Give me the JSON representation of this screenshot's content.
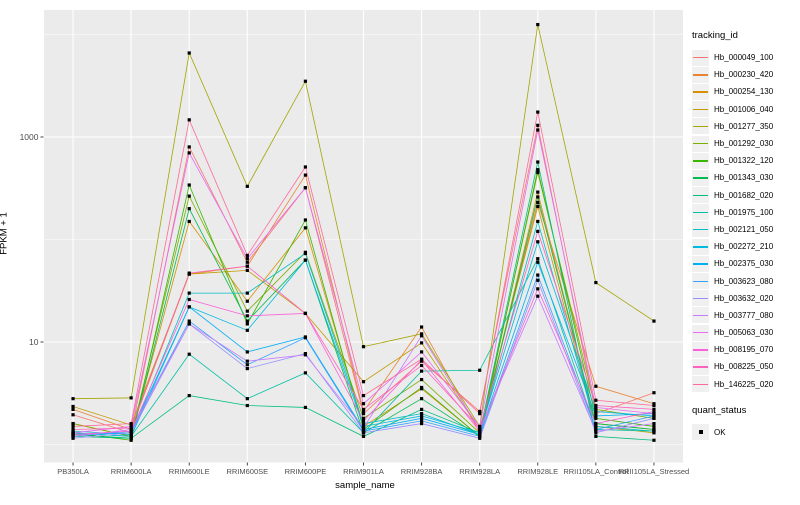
{
  "figure": {
    "background": "#FFFFFF",
    "panel_background": "#EBEBEB",
    "grid_color": "#FFFFFF",
    "tick_color": "#333333",
    "tick_label_color": "#4D4D4D",
    "point_color": "#000000"
  },
  "axes": {
    "y_title": "FPKM + 1",
    "x_title": "sample_name",
    "y_scale": "log10",
    "y_tick_labels": [
      "10",
      "1000"
    ],
    "y_tick_values": [
      10,
      1000
    ],
    "y_minor_grid_values": [
      1,
      100,
      10000
    ]
  },
  "legend": {
    "tracking_title": "tracking_id",
    "quant_title": "quant_status",
    "quant_items": [
      {
        "label": "OK",
        "marker": "black-square"
      }
    ]
  },
  "chart_data": {
    "type": "line",
    "title": "",
    "xlabel": "sample_name",
    "ylabel": "FPKM + 1",
    "y_scale": "log10",
    "ylim": [
      0.7,
      17000
    ],
    "grid": true,
    "legend_position": "right",
    "point_marker": "black-square",
    "categories": [
      "PB350LA",
      "RRIM600LA",
      "RRIM600LE",
      "RRIM600SE",
      "RRIM600PE",
      "RRIM901LA",
      "RRIM928BA",
      "RRIM928LA",
      "RRIM928LE",
      "RRII105LA_Control",
      "RRII105LA_Stressed"
    ],
    "series": [
      {
        "name": "Hb_000049_100",
        "color": "#F8766D",
        "values": [
          1.95,
          1.3,
          800,
          60,
          320,
          2.0,
          6.5,
          2.1,
          1300,
          2.0,
          3.2
        ]
      },
      {
        "name": "Hb_000230_420",
        "color": "#EA8331",
        "values": [
          2.2,
          1.4,
          46,
          55,
          425,
          2.1,
          14,
          1.3,
          230,
          3.7,
          2.5
        ]
      },
      {
        "name": "Hb_000254_130",
        "color": "#D89000",
        "values": [
          1.6,
          1.2,
          150,
          25,
          130,
          1.5,
          3.5,
          1.2,
          290,
          1.6,
          1.4
        ]
      },
      {
        "name": "Hb_001006_040",
        "color": "#C09B00",
        "values": [
          2.35,
          1.55,
          46,
          50,
          19,
          4.1,
          9.8,
          1.4,
          210,
          1.5,
          1.3
        ]
      },
      {
        "name": "Hb_001277_350",
        "color": "#A3A500",
        "values": [
          2.8,
          2.85,
          6600,
          330,
          3500,
          9.0,
          12,
          1.5,
          12500,
          38,
          16
        ]
      },
      {
        "name": "Hb_001292_030",
        "color": "#7CAE00",
        "values": [
          1.6,
          1.2,
          265,
          20,
          75,
          1.8,
          4.3,
          1.3,
          450,
          2.2,
          1.8
        ]
      },
      {
        "name": "Hb_001322_120",
        "color": "#39B600",
        "values": [
          1.3,
          1.1,
          340,
          15,
          155,
          1.4,
          3.6,
          1.2,
          480,
          1.8,
          1.5
        ]
      },
      {
        "name": "Hb_001343_030",
        "color": "#00BB4E",
        "values": [
          1.25,
          1.15,
          200,
          16,
          63,
          1.3,
          2.8,
          1.2,
          260,
          1.6,
          1.4
        ]
      },
      {
        "name": "Hb_001682_020",
        "color": "#00BF7D",
        "values": [
          1.2,
          1.15,
          3.0,
          2.4,
          2.3,
          1.2,
          2.2,
          1.3,
          570,
          1.2,
          1.1
        ]
      },
      {
        "name": "Hb_001975_100",
        "color": "#00C1A3",
        "values": [
          1.3,
          1.2,
          7.6,
          2.8,
          5.0,
          1.3,
          5.2,
          5.3,
          65,
          1.4,
          1.35
        ]
      },
      {
        "name": "Hb_002121_050",
        "color": "#00BFC4",
        "values": [
          1.35,
          1.25,
          30,
          30,
          73,
          1.6,
          2.0,
          1.25,
          150,
          1.5,
          1.35
        ]
      },
      {
        "name": "Hb_002272_210",
        "color": "#00BAE0",
        "values": [
          1.3,
          1.2,
          22,
          13,
          63,
          1.5,
          1.9,
          1.3,
          95,
          2.1,
          1.9
        ]
      },
      {
        "name": "Hb_002375_030",
        "color": "#00B0F6",
        "values": [
          1.25,
          1.3,
          22,
          8,
          11.2,
          1.4,
          1.8,
          1.25,
          60,
          1.9,
          2.0
        ]
      },
      {
        "name": "Hb_003623_080",
        "color": "#35A2FF",
        "values": [
          1.2,
          1.35,
          16,
          6,
          11,
          1.35,
          1.7,
          1.2,
          45,
          1.4,
          1.9
        ]
      },
      {
        "name": "Hb_003632_020",
        "color": "#9590FF",
        "values": [
          1.15,
          1.3,
          15,
          5.5,
          7.7,
          1.3,
          1.6,
          1.15,
          40,
          1.3,
          1.8
        ]
      },
      {
        "name": "Hb_003777_080",
        "color": "#C77CFF",
        "values": [
          1.2,
          1.4,
          15,
          6.5,
          7.5,
          1.45,
          11.5,
          1.4,
          28,
          1.35,
          1.6
        ]
      },
      {
        "name": "Hb_005063_030",
        "color": "#E76BF3",
        "values": [
          1.3,
          1.5,
          700,
          65,
          320,
          2.5,
          8.0,
          1.5,
          1170,
          2.3,
          2.0
        ]
      },
      {
        "name": "Hb_008195_070",
        "color": "#FA62DB",
        "values": [
          1.25,
          1.35,
          26,
          18,
          19,
          1.7,
          6.7,
          1.35,
          33,
          1.6,
          2.1
        ]
      },
      {
        "name": "Hb_008225_050",
        "color": "#FF62BC",
        "values": [
          1.4,
          1.45,
          47,
          55,
          19,
          2.2,
          5.9,
          1.45,
          120,
          2.4,
          2.2
        ]
      },
      {
        "name": "Hb_146225_020",
        "color": "#FF6A98",
        "values": [
          1.5,
          1.6,
          1470,
          70,
          510,
          3.0,
          6.8,
          2.0,
          1750,
          2.7,
          2.4
        ]
      }
    ]
  }
}
